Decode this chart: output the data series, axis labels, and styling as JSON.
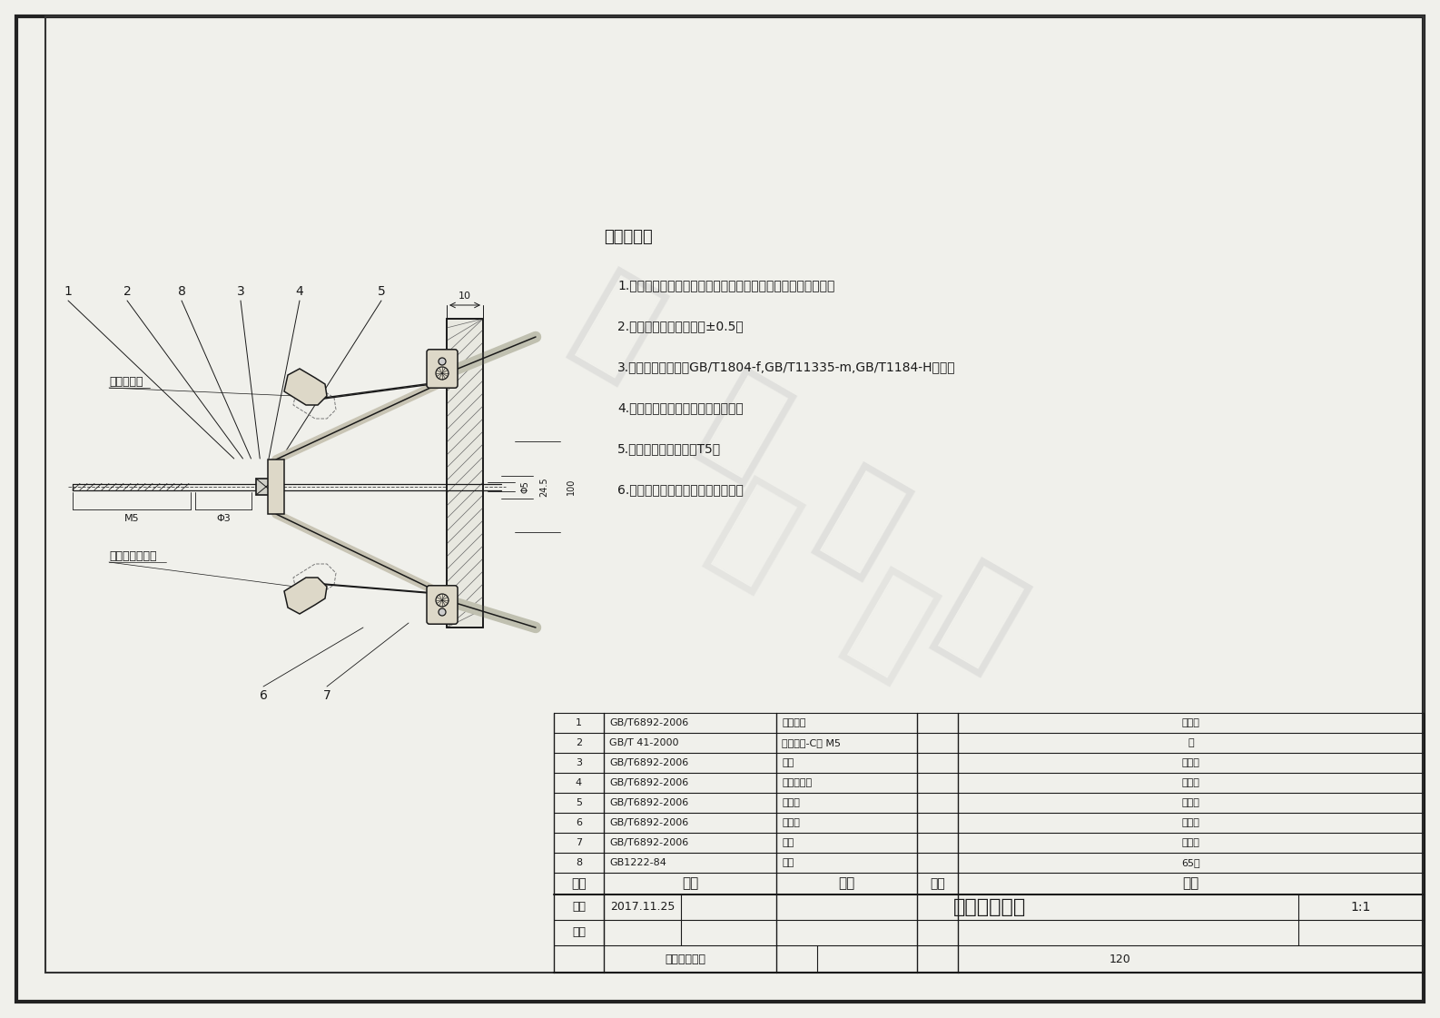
{
  "bg_color": "#f0f0eb",
  "line_color": "#1a1a1a",
  "border_lw": 2.0,
  "tech_requirements": [
    "技术要求：",
    "1.零件不能有变形、裂纹等缺陷，零件表面不能有划痕、擦伤。",
    "2.零件未注尺寸允许偏差±0.5。",
    "3.零件未注公差按照GB/T1804-f,GB/T11335-m,GB/T1184-H执行。",
    "4.零件锐角倒魂；去除毛刺、飞边。",
    "5.铝合金零件热处理：T5。",
    "6.装配松紧适度，不能有卡死现象。"
  ],
  "bom_rows": [
    [
      "8",
      "GB1222-84",
      "弹簧",
      "",
      "65钓"
    ],
    [
      "7",
      "GB/T6892-2006",
      "基板",
      "",
      "铝合金"
    ],
    [
      "6",
      "GB/T6892-2006",
      "连接板",
      "",
      "铝合金"
    ],
    [
      "5",
      "GB/T6892-2006",
      "伸缩杆",
      "",
      "铝合金"
    ],
    [
      "4",
      "GB/T6892-2006",
      "活动连接块",
      "",
      "铝合金"
    ],
    [
      "3",
      "GB/T6892-2006",
      "卡钉",
      "",
      "铝合金"
    ],
    [
      "2",
      "GB/T 41-2000",
      "六角螺母-C级 M5",
      "",
      "钓"
    ],
    [
      "1",
      "GB/T6892-2006",
      "驱动螺杆",
      "",
      "铝合金"
    ]
  ],
  "bom_header": [
    "序号",
    "标准",
    "名称",
    "数量",
    "材料"
  ],
  "drawing_info": {
    "drawer_label": "制图",
    "date": "2017.11.25",
    "checker_label": "校核",
    "company": "重庆夹研科技",
    "drawing_no": "120",
    "scale": "1:1",
    "title_name": "自动夹紧装置"
  },
  "annotations": {
    "cam_open": "用凸轮松开",
    "spring_clamp": "用強力弹簧夹紧",
    "dim_10": "10",
    "dim_M5": "M5",
    "dim_phi3": "Φ3",
    "dim_24_5": "24.5",
    "dim_100": "100",
    "dim_phi5": "Φ5"
  },
  "watermark_chars": [
    "夹",
    "研",
    "科",
    "技"
  ]
}
